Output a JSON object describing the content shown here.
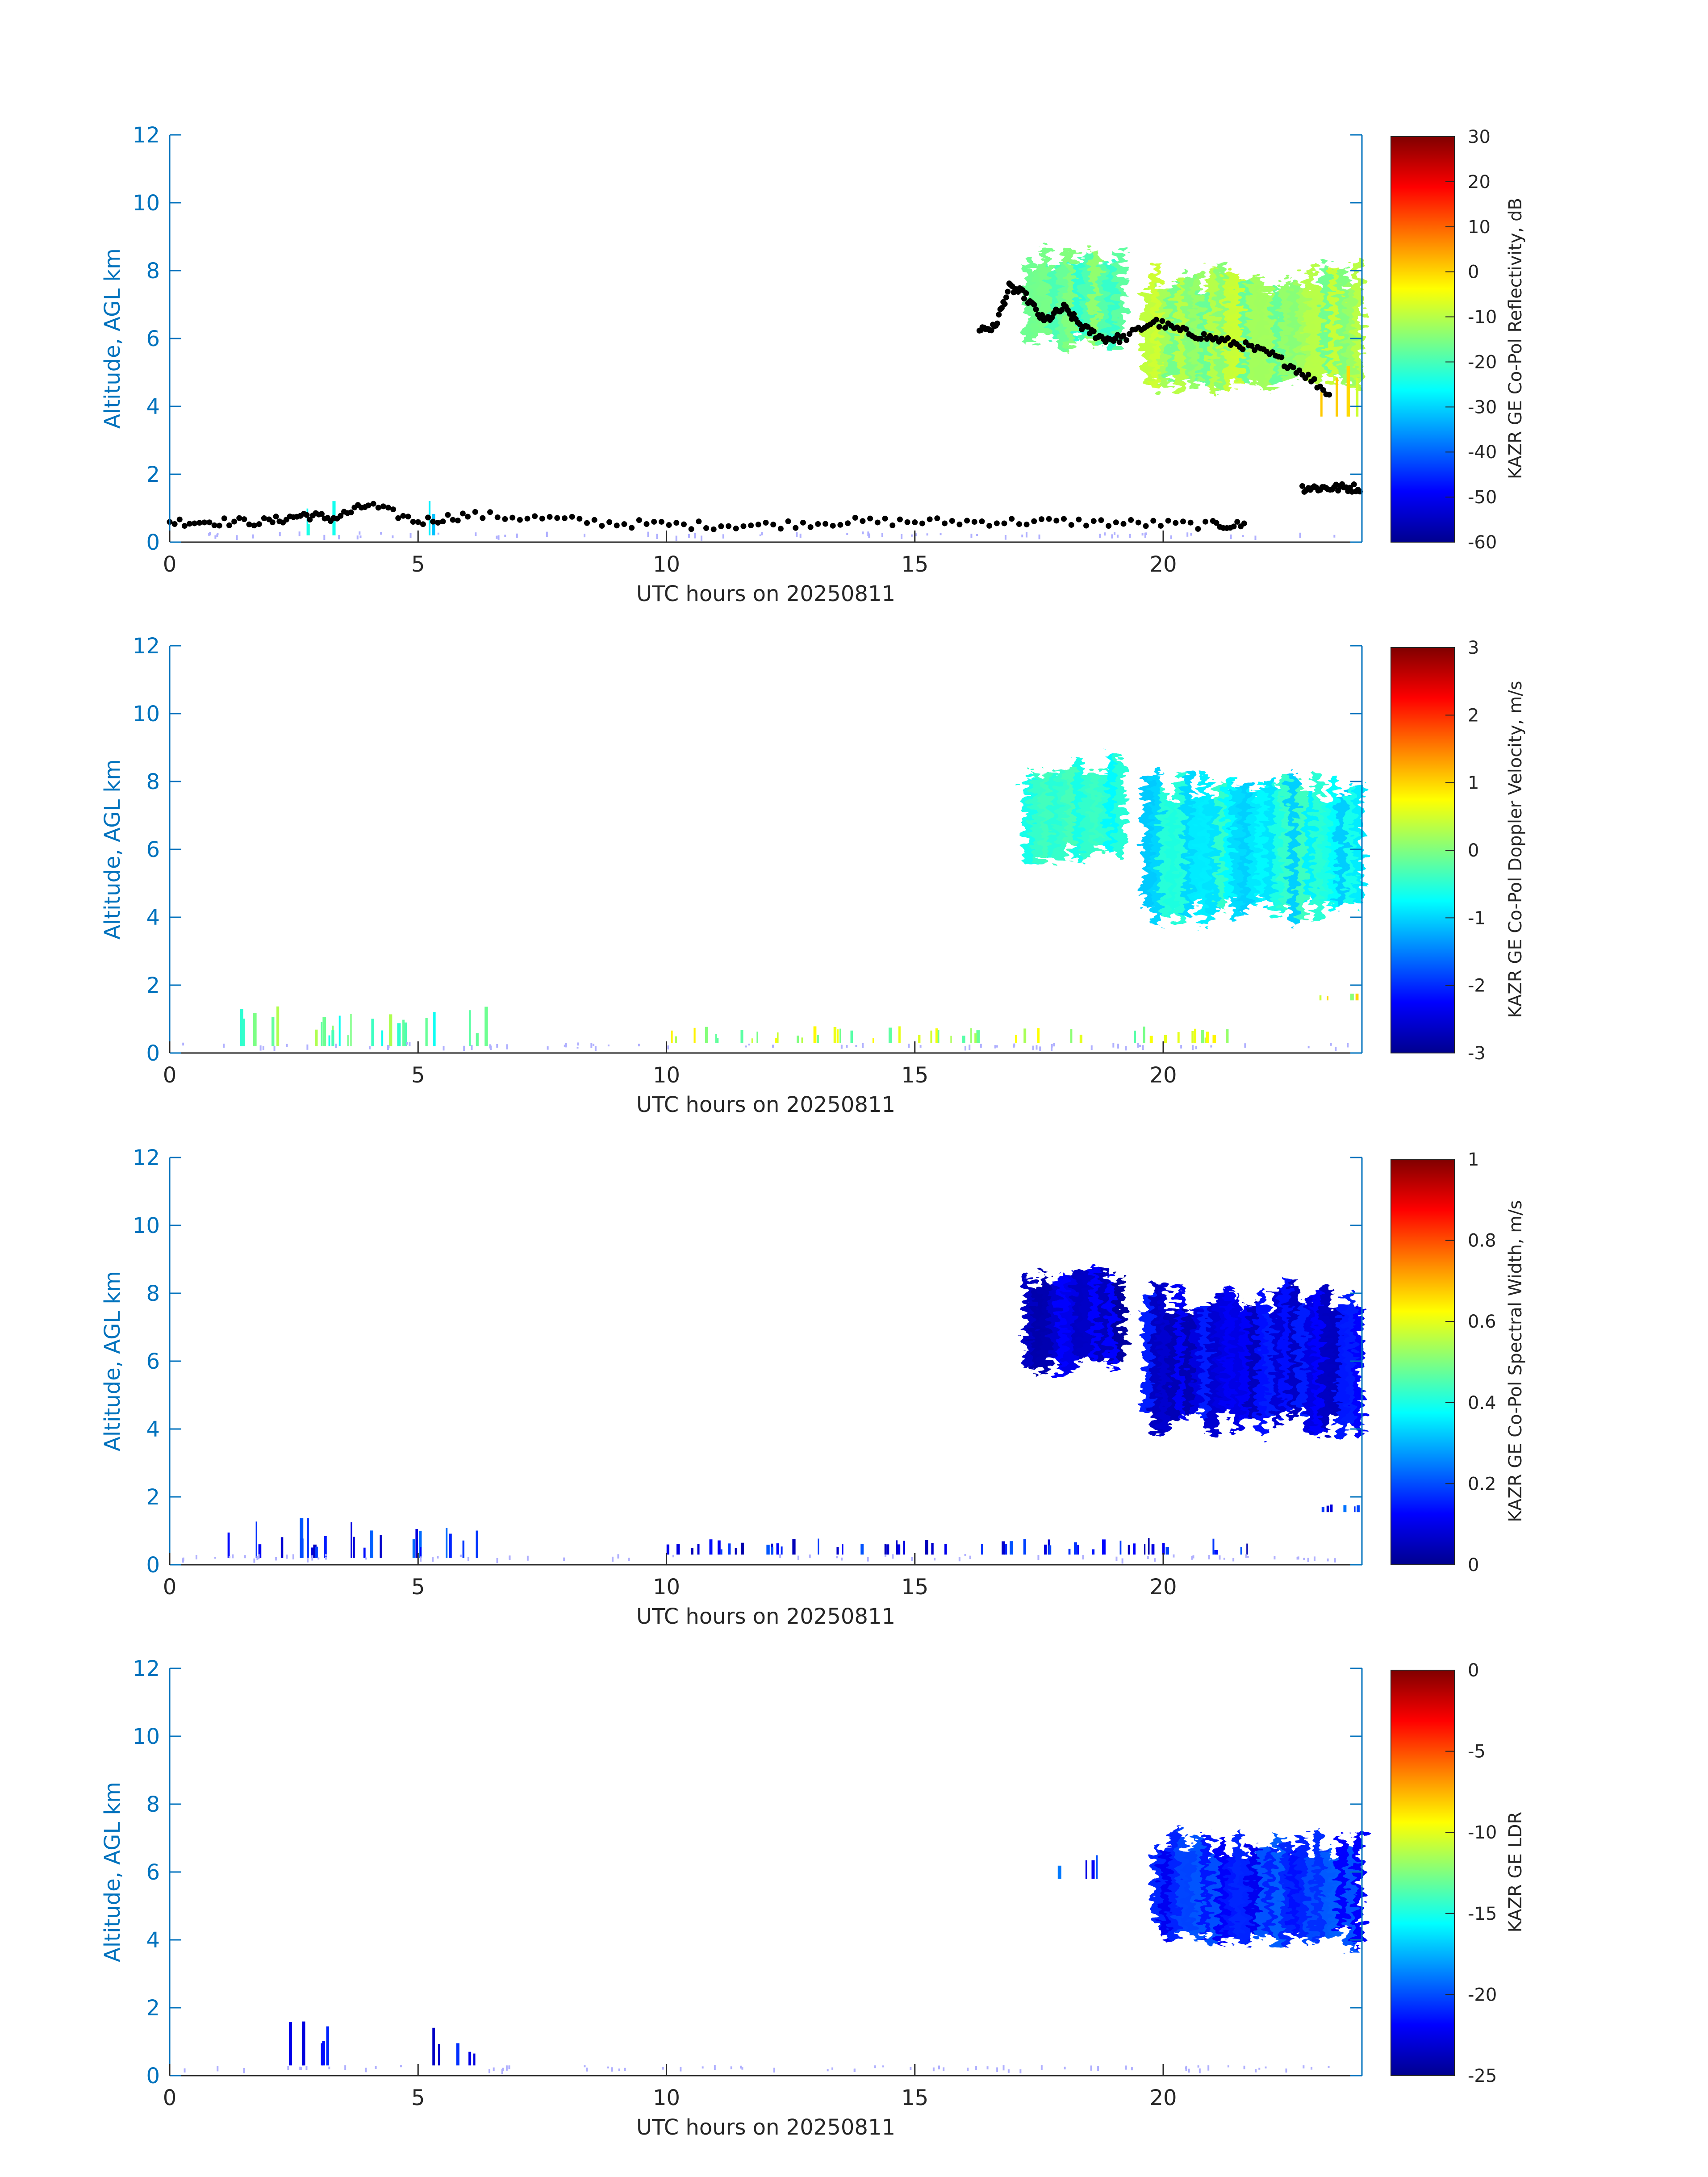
{
  "colors": {
    "axis_blue": "#0072bd",
    "colorbar_text": "#262626",
    "clutter": "#b0b0ff",
    "cloud_base_points": "#000000"
  },
  "chart_data": [
    {
      "type": "heatmap",
      "variable": "reflectivity",
      "xlabel": "UTC hours on 20250811",
      "ylabel": "Altitude, AGL km",
      "xlim": [
        0,
        24
      ],
      "ylim": [
        0,
        12
      ],
      "xticks": [
        0,
        5,
        10,
        15,
        20
      ],
      "yticks": [
        0,
        2,
        4,
        6,
        8,
        10,
        12
      ],
      "colorbar": {
        "label": "KAZR GE Co-Pol Reflectivity, dB",
        "min": -60,
        "max": 30,
        "ticks": [
          30,
          20,
          10,
          0,
          -10,
          -20,
          -30,
          -40,
          -50,
          -60
        ]
      },
      "features": [
        {
          "x": [
            17.2,
            19.2
          ],
          "y_bottom": 5.6,
          "y_top": 8.8,
          "value": -18
        },
        {
          "x": [
            19.6,
            24.0
          ],
          "y_bottom": 4.3,
          "y_top": 8.3,
          "value": -12
        },
        {
          "x": [
            22.5,
            24.0
          ],
          "y_bottom": 3.7,
          "y_top": 5.2,
          "value": -2
        },
        {
          "x": [
            2.5,
            3.3
          ],
          "y_bottom": 0.2,
          "y_top": 1.5,
          "value": -25
        },
        {
          "x": [
            5.0,
            5.3
          ],
          "y_bottom": 0.2,
          "y_top": 1.5,
          "value": -25
        }
      ],
      "cloud_base_series": [
        {
          "x": [
            0.0,
            1.0,
            2.0,
            2.7,
            3.3,
            4.0,
            5.0,
            6.0,
            7.5,
            9.0,
            10.5,
            12.0,
            13.5,
            15.0,
            16.5,
            18.0,
            19.5,
            21.0,
            21.7
          ],
          "y": [
            0.6,
            0.6,
            0.6,
            0.8,
            0.7,
            1.1,
            0.6,
            0.8,
            0.7,
            0.55,
            0.5,
            0.5,
            0.6,
            0.6,
            0.6,
            0.6,
            0.55,
            0.5,
            0.5
          ]
        },
        {
          "x": [
            16.3,
            16.6,
            16.9,
            17.2,
            17.6,
            18.0,
            18.4,
            18.8,
            19.2,
            19.8,
            20.4,
            21.0,
            21.6,
            22.2,
            22.8,
            23.4
          ],
          "y": [
            6.3,
            6.3,
            7.5,
            7.3,
            6.5,
            6.9,
            6.3,
            6.0,
            6.0,
            6.5,
            6.2,
            6.0,
            5.8,
            5.5,
            5.0,
            4.3
          ]
        },
        {
          "x": [
            22.8,
            23.2,
            23.6,
            24.0
          ],
          "y": [
            1.6,
            1.6,
            1.6,
            1.6
          ]
        }
      ]
    },
    {
      "type": "heatmap",
      "variable": "doppler_velocity",
      "xlabel": "UTC hours on 20250811",
      "ylabel": "Altitude, AGL km",
      "xlim": [
        0,
        24
      ],
      "ylim": [
        0,
        12
      ],
      "xticks": [
        0,
        5,
        10,
        15,
        20
      ],
      "yticks": [
        0,
        2,
        4,
        6,
        8,
        10,
        12
      ],
      "colorbar": {
        "label": "KAZR GE Co-Pol Doppler Velocity, m/s",
        "min": -3,
        "max": 3,
        "ticks": [
          3,
          2,
          1,
          0,
          -1,
          -2,
          -3
        ]
      },
      "features": [
        {
          "x": [
            17.2,
            19.2
          ],
          "y_bottom": 5.6,
          "y_top": 8.8,
          "value": -0.5
        },
        {
          "x": [
            19.6,
            24.0
          ],
          "y_bottom": 3.7,
          "y_top": 8.4,
          "value": -0.7
        },
        {
          "x": [
            1.0,
            6.5
          ],
          "y_bottom": 0.2,
          "y_top": 1.4,
          "value": -0.2
        },
        {
          "x": [
            10.0,
            21.7
          ],
          "y_bottom": 0.3,
          "y_top": 0.8,
          "value": 0.3
        },
        {
          "x": [
            23.0,
            23.9
          ],
          "y_bottom": 1.55,
          "y_top": 1.8,
          "value": 0.5
        }
      ]
    },
    {
      "type": "heatmap",
      "variable": "spectral_width",
      "xlabel": "UTC hours on 20250811",
      "ylabel": "Altitude, AGL km",
      "xlim": [
        0,
        24
      ],
      "ylim": [
        0,
        12
      ],
      "xticks": [
        0,
        5,
        10,
        15,
        20
      ],
      "yticks": [
        0,
        2,
        4,
        6,
        8,
        10,
        12
      ],
      "colorbar": {
        "label": "KAZR GE Co-Pol Spectral Width, m/s",
        "min": 0,
        "max": 1,
        "ticks": [
          1,
          0.8,
          0.6,
          0.4,
          0.2,
          0
        ]
      },
      "features": [
        {
          "x": [
            17.2,
            19.2
          ],
          "y_bottom": 5.6,
          "y_top": 8.8,
          "value": 0.08
        },
        {
          "x": [
            19.6,
            24.0
          ],
          "y_bottom": 3.7,
          "y_top": 8.4,
          "value": 0.1
        },
        {
          "x": [
            1.0,
            6.5
          ],
          "y_bottom": 0.2,
          "y_top": 1.4,
          "value": 0.15
        },
        {
          "x": [
            10.0,
            21.7
          ],
          "y_bottom": 0.3,
          "y_top": 0.8,
          "value": 0.12
        },
        {
          "x": [
            23.0,
            23.9
          ],
          "y_bottom": 1.55,
          "y_top": 1.8,
          "value": 0.15
        }
      ]
    },
    {
      "type": "heatmap",
      "variable": "ldr",
      "xlabel": "UTC hours on 20250811",
      "ylabel": "Altitude, AGL km",
      "xlim": [
        0,
        24
      ],
      "ylim": [
        0,
        12
      ],
      "xticks": [
        0,
        5,
        10,
        15,
        20
      ],
      "yticks": [
        0,
        2,
        4,
        6,
        8,
        10,
        12
      ],
      "colorbar": {
        "label": "KAZR GE LDR",
        "min": -25,
        "max": 0,
        "ticks": [
          0,
          -5,
          -10,
          -15,
          -20,
          -25
        ]
      },
      "features": [
        {
          "x": [
            17.8,
            18.7
          ],
          "y_bottom": 5.8,
          "y_top": 6.9,
          "value": -21
        },
        {
          "x": [
            19.8,
            24.0
          ],
          "y_bottom": 3.7,
          "y_top": 7.3,
          "value": -21
        },
        {
          "x": [
            2.1,
            3.2
          ],
          "y_bottom": 0.3,
          "y_top": 1.6,
          "value": -22
        },
        {
          "x": [
            5.1,
            6.3
          ],
          "y_bottom": 0.3,
          "y_top": 1.5,
          "value": -22
        }
      ]
    }
  ]
}
